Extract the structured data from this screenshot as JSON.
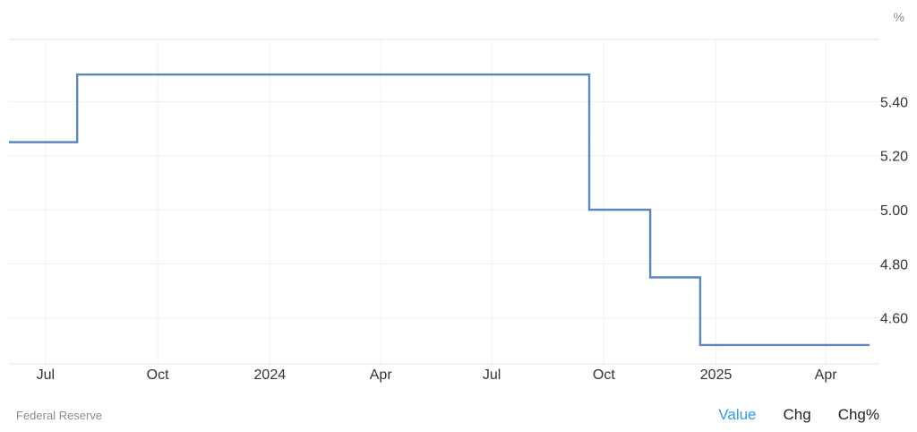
{
  "chart_data": {
    "type": "line",
    "step": true,
    "unit": "%",
    "x": [
      "2023-06-01",
      "2023-07-27",
      "2024-09-19",
      "2024-11-08",
      "2024-12-19",
      "2025-05-07"
    ],
    "values": [
      5.25,
      5.5,
      5.0,
      4.75,
      4.5,
      4.5
    ],
    "ylim": [
      4.43,
      5.63
    ],
    "yticks": [
      4.6,
      4.8,
      5.0,
      5.2,
      5.4
    ],
    "ytick_labels": [
      "4.60",
      "4.80",
      "5.00",
      "5.20",
      "5.40"
    ],
    "xticks": [
      "2023-07-01",
      "2023-10-01",
      "2024-01-01",
      "2024-04-01",
      "2024-07-01",
      "2024-10-01",
      "2025-01-01",
      "2025-04-01"
    ],
    "xtick_labels": [
      "Jul",
      "Oct",
      "2024",
      "Apr",
      "Jul",
      "Oct",
      "2025",
      "Apr"
    ],
    "xlim": [
      "2023-06-01",
      "2025-05-15"
    ],
    "grid": true,
    "line_color": "#5b86c0"
  },
  "footer": {
    "source": "Federal Reserve",
    "tabs": [
      "Value",
      "Chg",
      "Chg%"
    ],
    "active_tab": "Value",
    "active_color": "#2f9de4"
  }
}
